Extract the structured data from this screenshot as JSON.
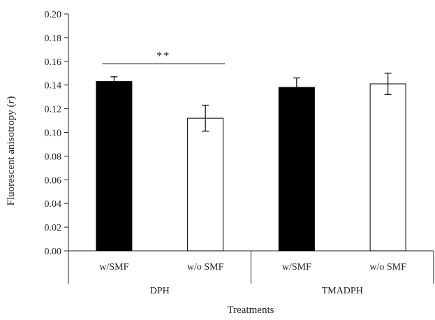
{
  "chart_data": {
    "type": "bar",
    "ylabel": "Fluorescent anisotropy (r)",
    "ylabel_parts": {
      "main": "Fluorescent anisotropy (",
      "var": "r",
      "close": ")"
    },
    "xlabel": "Treatments",
    "ylim": [
      0,
      0.2
    ],
    "yticks": [
      "0.00",
      "0.02",
      "0.04",
      "0.06",
      "0.08",
      "0.10",
      "0.12",
      "0.14",
      "0.16",
      "0.18",
      "0.20"
    ],
    "groups": [
      {
        "name": "DPH",
        "categories": [
          "w/SMF",
          "w/o SMF"
        ]
      },
      {
        "name": "TMADPH",
        "categories": [
          "w/SMF",
          "w/o SMF"
        ]
      }
    ],
    "bars": [
      {
        "group": "DPH",
        "category": "w/SMF",
        "value": 0.143,
        "error": 0.004,
        "fill": "#000000"
      },
      {
        "group": "DPH",
        "category": "w/o SMF",
        "value": 0.112,
        "error": 0.011,
        "fill": "#ffffff"
      },
      {
        "group": "TMADPH",
        "category": "w/SMF",
        "value": 0.138,
        "error": 0.008,
        "fill": "#000000"
      },
      {
        "group": "TMADPH",
        "category": "w/o SMF",
        "value": 0.141,
        "error": 0.009,
        "fill": "#ffffff"
      }
    ],
    "annotations": [
      {
        "text": "**",
        "between": [
          "DPH w/SMF",
          "DPH w/o SMF"
        ],
        "y": 0.158
      }
    ],
    "grid": false,
    "legend": "none"
  }
}
